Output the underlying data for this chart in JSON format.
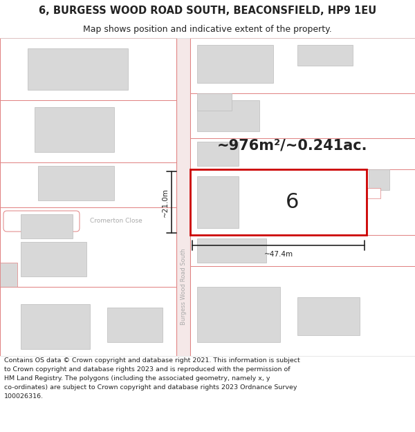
{
  "title_line1": "6, BURGESS WOOD ROAD SOUTH, BEACONSFIELD, HP9 1EU",
  "title_line2": "Map shows position and indicative extent of the property.",
  "area_label": "~976m²/~0.241ac.",
  "plot_number": "6",
  "dim_width": "~47.4m",
  "dim_height": "~21.0m",
  "road_label": "Burgess Wood Road South",
  "street_label": "Cromerton Close",
  "footer": "Contains OS data © Crown copyright and database right 2021. This information is subject\nto Crown copyright and database rights 2023 and is reproduced with the permission of\nHM Land Registry. The polygons (including the associated geometry, namely x, y\nco-ordinates) are subject to Crown copyright and database rights 2023 Ordnance Survey\n100026316.",
  "bg_color": "#ffffff",
  "map_bg": "#ffffff",
  "road_fill": "#f5e8e8",
  "building_color": "#d8d8d8",
  "building_outline": "#bbbbbb",
  "plot_outline_color": "#cc0000",
  "road_line_color": "#e08080",
  "dim_color": "#222222",
  "text_color": "#222222",
  "grey_text": "#aaaaaa"
}
